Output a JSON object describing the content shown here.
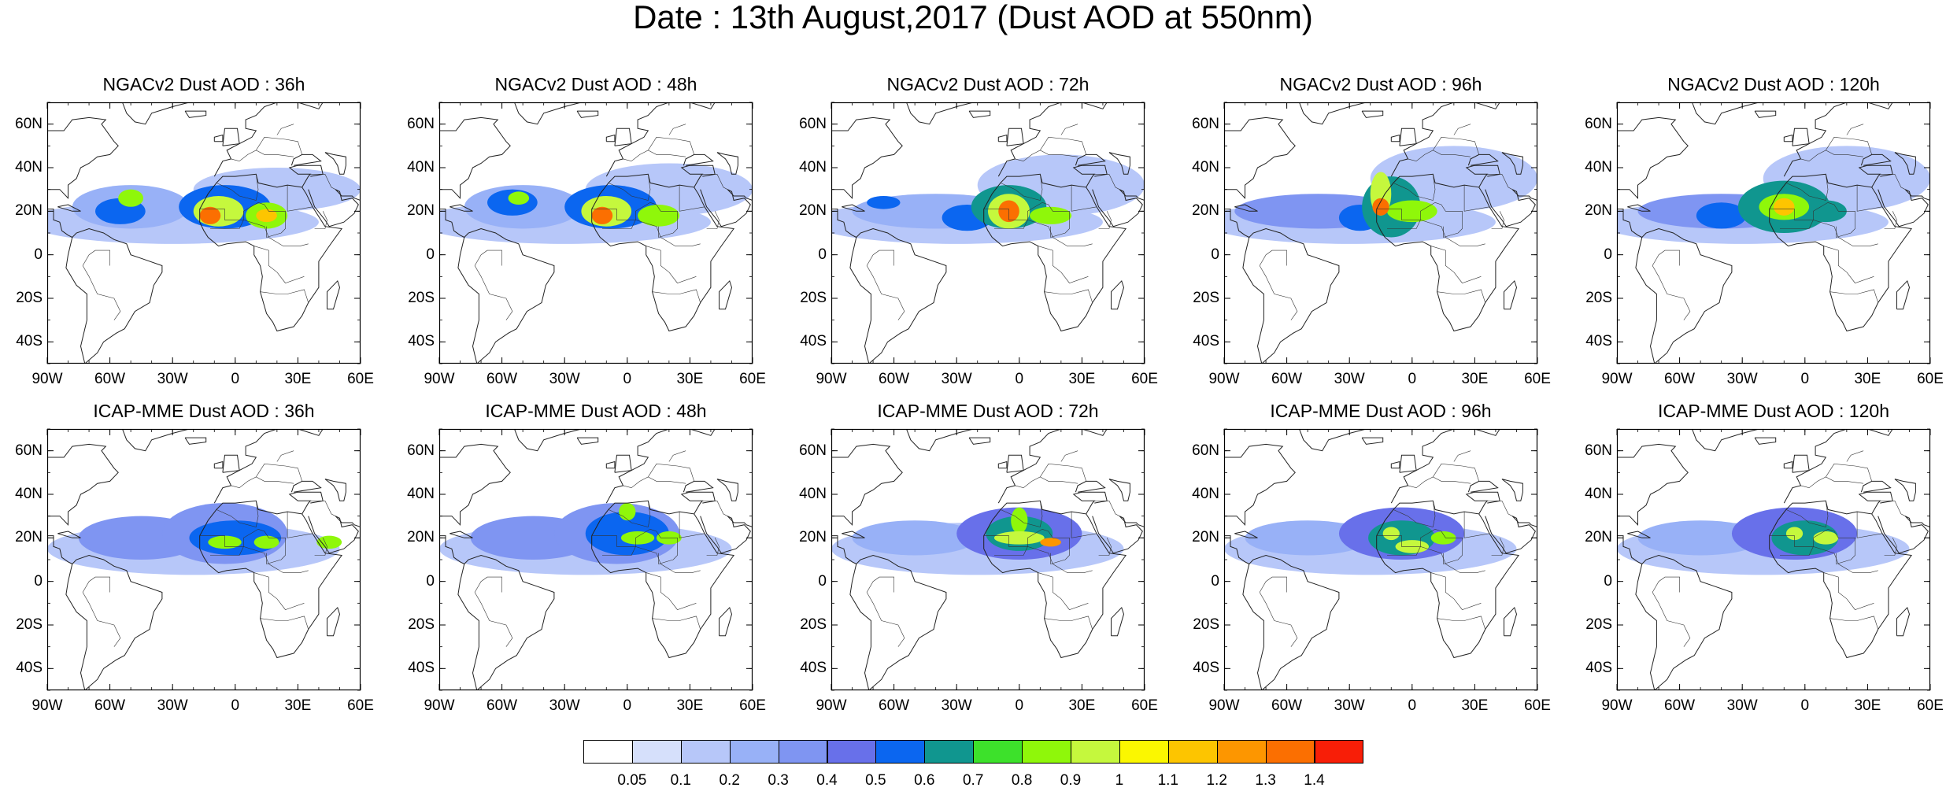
{
  "title": "Date : 13th August,2017 (Dust AOD at 550nm)",
  "panels": [
    {
      "title": "NGACv2 Dust AOD : 36h",
      "model": "NGACv2",
      "lead": 36,
      "blobs": [
        [
          -50,
          22,
          28,
          10,
          0.25
        ],
        [
          -55,
          20,
          12,
          6,
          0.5
        ],
        [
          -50,
          26,
          6,
          4,
          0.8
        ],
        [
          -5,
          22,
          22,
          10,
          0.5
        ],
        [
          -8,
          20,
          12,
          7,
          0.9
        ],
        [
          -12,
          18,
          5,
          4,
          1.3
        ],
        [
          15,
          18,
          10,
          6,
          0.8
        ],
        [
          15,
          18,
          5,
          3,
          1.1
        ],
        [
          -30,
          15,
          70,
          10,
          0.15
        ],
        [
          20,
          30,
          40,
          10,
          0.15
        ]
      ]
    },
    {
      "title": "NGACv2 Dust AOD : 48h",
      "model": "NGACv2",
      "lead": 48,
      "blobs": [
        [
          -50,
          22,
          28,
          10,
          0.25
        ],
        [
          -55,
          24,
          12,
          6,
          0.5
        ],
        [
          -52,
          26,
          5,
          3,
          0.8
        ],
        [
          -8,
          22,
          22,
          10,
          0.5
        ],
        [
          -10,
          20,
          12,
          7,
          0.9
        ],
        [
          -12,
          18,
          5,
          4,
          1.3
        ],
        [
          15,
          18,
          10,
          5,
          0.8
        ],
        [
          -30,
          15,
          70,
          10,
          0.15
        ],
        [
          20,
          30,
          40,
          12,
          0.15
        ]
      ]
    },
    {
      "title": "NGACv2 Dust AOD : 72h",
      "model": "NGACv2",
      "lead": 72,
      "blobs": [
        [
          -40,
          20,
          40,
          8,
          0.25
        ],
        [
          -65,
          24,
          8,
          3,
          0.5
        ],
        [
          -25,
          17,
          12,
          6,
          0.5
        ],
        [
          -5,
          22,
          18,
          10,
          0.6
        ],
        [
          -5,
          20,
          10,
          8,
          0.9
        ],
        [
          -5,
          20,
          5,
          5,
          1.3
        ],
        [
          15,
          18,
          10,
          4,
          0.8
        ],
        [
          -30,
          15,
          70,
          10,
          0.15
        ],
        [
          20,
          32,
          40,
          14,
          0.15
        ]
      ]
    },
    {
      "title": "NGACv2 Dust AOD : 96h",
      "model": "NGACv2",
      "lead": 96,
      "blobs": [
        [
          -45,
          20,
          40,
          8,
          0.3
        ],
        [
          -25,
          17,
          10,
          6,
          0.5
        ],
        [
          -10,
          22,
          14,
          14,
          0.6
        ],
        [
          -15,
          28,
          5,
          10,
          0.9
        ],
        [
          -15,
          22,
          4,
          4,
          1.3
        ],
        [
          0,
          20,
          12,
          5,
          0.8
        ],
        [
          -30,
          15,
          70,
          10,
          0.15
        ],
        [
          20,
          35,
          40,
          15,
          0.15
        ]
      ]
    },
    {
      "title": "NGACv2 Dust AOD : 120h",
      "model": "NGACv2",
      "lead": 120,
      "blobs": [
        [
          -40,
          20,
          40,
          8,
          0.3
        ],
        [
          -40,
          18,
          12,
          6,
          0.5
        ],
        [
          -10,
          22,
          22,
          12,
          0.6
        ],
        [
          -10,
          22,
          12,
          6,
          0.8
        ],
        [
          -10,
          22,
          5,
          4,
          1.1
        ],
        [
          10,
          20,
          10,
          5,
          0.6
        ],
        [
          -30,
          15,
          70,
          10,
          0.15
        ],
        [
          20,
          35,
          40,
          15,
          0.15
        ]
      ]
    },
    {
      "title": "ICAP-MME Dust AOD : 36h",
      "model": "ICAP-MME",
      "lead": 36,
      "blobs": [
        [
          -45,
          20,
          30,
          10,
          0.3
        ],
        [
          -5,
          22,
          30,
          14,
          0.35
        ],
        [
          0,
          20,
          22,
          8,
          0.5
        ],
        [
          -5,
          18,
          8,
          3,
          0.8
        ],
        [
          15,
          18,
          6,
          3,
          0.8
        ],
        [
          45,
          18,
          6,
          3,
          0.8
        ],
        [
          -20,
          15,
          70,
          12,
          0.12
        ]
      ]
    },
    {
      "title": "ICAP-MME Dust AOD : 48h",
      "model": "ICAP-MME",
      "lead": 48,
      "blobs": [
        [
          -45,
          20,
          30,
          10,
          0.3
        ],
        [
          -5,
          22,
          30,
          14,
          0.35
        ],
        [
          0,
          22,
          20,
          10,
          0.5
        ],
        [
          0,
          32,
          4,
          4,
          0.8
        ],
        [
          5,
          20,
          8,
          3,
          0.8
        ],
        [
          20,
          20,
          6,
          3,
          0.8
        ],
        [
          -20,
          15,
          70,
          12,
          0.12
        ]
      ]
    },
    {
      "title": "ICAP-MME Dust AOD : 72h",
      "model": "ICAP-MME",
      "lead": 72,
      "blobs": [
        [
          -50,
          20,
          30,
          8,
          0.25
        ],
        [
          0,
          22,
          30,
          12,
          0.4
        ],
        [
          0,
          22,
          16,
          8,
          0.6
        ],
        [
          0,
          28,
          4,
          6,
          0.8
        ],
        [
          0,
          20,
          12,
          3,
          0.9
        ],
        [
          15,
          18,
          5,
          2,
          1.2
        ],
        [
          -20,
          15,
          70,
          12,
          0.12
        ]
      ]
    },
    {
      "title": "ICAP-MME Dust AOD : 96h",
      "model": "ICAP-MME",
      "lead": 96,
      "blobs": [
        [
          -50,
          20,
          30,
          8,
          0.25
        ],
        [
          -5,
          22,
          30,
          12,
          0.4
        ],
        [
          -5,
          20,
          16,
          8,
          0.6
        ],
        [
          -10,
          22,
          4,
          3,
          0.9
        ],
        [
          0,
          16,
          8,
          3,
          0.9
        ],
        [
          15,
          20,
          6,
          3,
          0.8
        ],
        [
          -20,
          15,
          70,
          12,
          0.12
        ]
      ]
    },
    {
      "title": "ICAP-MME Dust AOD : 120h",
      "model": "ICAP-MME",
      "lead": 120,
      "blobs": [
        [
          -50,
          20,
          30,
          8,
          0.25
        ],
        [
          -5,
          22,
          30,
          12,
          0.4
        ],
        [
          0,
          20,
          16,
          8,
          0.6
        ],
        [
          -5,
          22,
          4,
          3,
          0.9
        ],
        [
          10,
          20,
          6,
          3,
          0.9
        ],
        [
          -20,
          15,
          70,
          12,
          0.12
        ]
      ]
    }
  ],
  "axes": {
    "lon_range": [
      -90,
      60
    ],
    "lat_range": [
      -50,
      70
    ],
    "xticks": [
      {
        "v": -90,
        "t": "90W"
      },
      {
        "v": -60,
        "t": "60W"
      },
      {
        "v": -30,
        "t": "30W"
      },
      {
        "v": 0,
        "t": "0"
      },
      {
        "v": 30,
        "t": "30E"
      },
      {
        "v": 60,
        "t": "60E"
      }
    ],
    "yticks": [
      {
        "v": 60,
        "t": "60N"
      },
      {
        "v": 40,
        "t": "40N"
      },
      {
        "v": 20,
        "t": "20N"
      },
      {
        "v": 0,
        "t": "0"
      },
      {
        "v": -20,
        "t": "20S"
      },
      {
        "v": -40,
        "t": "40S"
      }
    ]
  },
  "colorbar": {
    "labels": [
      "0.05",
      "0.1",
      "0.2",
      "0.3",
      "0.4",
      "0.5",
      "0.6",
      "0.7",
      "0.8",
      "0.9",
      "1",
      "1.1",
      "1.2",
      "1.3",
      "1.4"
    ],
    "thresholds": [
      0.05,
      0.1,
      0.2,
      0.3,
      0.4,
      0.5,
      0.6,
      0.7,
      0.8,
      0.9,
      1,
      1.1,
      1.2,
      1.3,
      1.4
    ],
    "colors": [
      "#ffffff",
      "#d6e0fb",
      "#b7c7f9",
      "#98b1f7",
      "#7f95f2",
      "#6870ea",
      "#0b66f0",
      "#10968f",
      "#3de12b",
      "#8ff70a",
      "#c5f83d",
      "#fbf700",
      "#fdc500",
      "#fd9600",
      "#fb6f01",
      "#f81e07"
    ]
  },
  "chart_data": {
    "type": "heatmap",
    "title": "Date : 13th August,2017 (Dust AOD at 550nm)",
    "panels": [
      "NGACv2 Dust AOD : 36h",
      "NGACv2 Dust AOD : 48h",
      "NGACv2 Dust AOD : 72h",
      "NGACv2 Dust AOD : 96h",
      "NGACv2 Dust AOD : 120h",
      "ICAP-MME Dust AOD : 36h",
      "ICAP-MME Dust AOD : 48h",
      "ICAP-MME Dust AOD : 72h",
      "ICAP-MME Dust AOD : 96h",
      "ICAP-MME Dust AOD : 120h"
    ],
    "xlim": [
      -90,
      60
    ],
    "ylim": [
      -50,
      70
    ],
    "levels": [
      0.05,
      0.1,
      0.2,
      0.3,
      0.4,
      0.5,
      0.6,
      0.7,
      0.8,
      0.9,
      1,
      1.1,
      1.2,
      1.3,
      1.4
    ]
  }
}
